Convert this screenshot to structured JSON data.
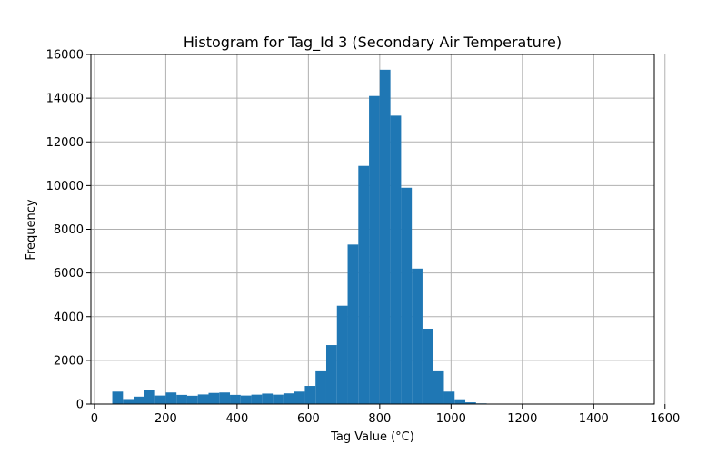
{
  "chart_data": {
    "type": "bar",
    "title": "Histogram for Tag_Id 3 (Secondary Air Temperature)",
    "xlabel": "Tag Value (°C)",
    "ylabel": "Frequency",
    "xlim": [
      -10,
      1570
    ],
    "ylim": [
      0,
      16000
    ],
    "xticks": [
      0,
      200,
      400,
      600,
      800,
      1000,
      1200,
      1400,
      1600
    ],
    "yticks": [
      0,
      2000,
      4000,
      6000,
      8000,
      10000,
      12000,
      14000,
      16000
    ],
    "grid": true,
    "bar_color": "#1f77b4",
    "bin_edges": [
      50,
      80,
      110,
      140,
      170,
      200,
      230,
      260,
      290,
      320,
      350,
      380,
      410,
      440,
      470,
      500,
      530,
      560,
      590,
      620,
      650,
      680,
      710,
      740,
      770,
      800,
      830,
      860,
      890,
      920,
      950,
      980,
      1010,
      1040,
      1070,
      1100
    ],
    "values": [
      570,
      230,
      340,
      660,
      390,
      530,
      420,
      380,
      440,
      510,
      530,
      420,
      390,
      430,
      480,
      430,
      490,
      570,
      830,
      1500,
      2700,
      4500,
      7300,
      10900,
      14100,
      15300,
      13200,
      9900,
      6200,
      3450,
      1500,
      570,
      220,
      80,
      30
    ]
  }
}
